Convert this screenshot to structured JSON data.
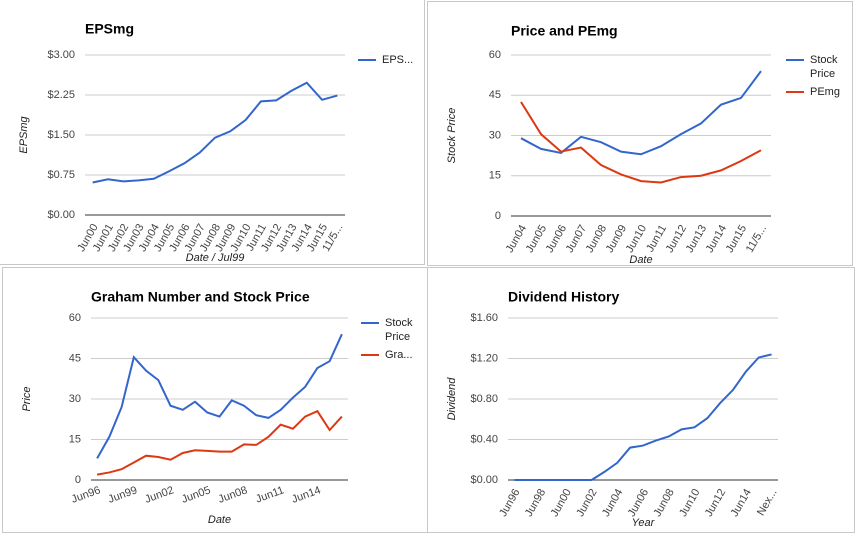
{
  "chart_data": [
    {
      "type": "line",
      "title": "EPSmg",
      "y_label": "EPSmg",
      "x_label": "Date / Jul99",
      "categories": [
        "Jun00",
        "Jun01",
        "Jun02",
        "Jun03",
        "Jun04",
        "Jun05",
        "Jun06",
        "Jun07",
        "Jun08",
        "Jun09",
        "Jun10",
        "Jun11",
        "Jun12",
        "Jun13",
        "Jun14",
        "Jun15",
        "11/5..."
      ],
      "series": [
        {
          "name": "EPS...",
          "color": "#3366cc",
          "values": [
            0.61,
            0.67,
            0.63,
            0.65,
            0.68,
            0.82,
            0.97,
            1.17,
            1.45,
            1.57,
            1.78,
            2.13,
            2.15,
            2.33,
            2.48,
            2.16,
            2.24
          ]
        }
      ],
      "ylim": [
        0,
        3
      ],
      "yticks": [
        {
          "value": 0,
          "label": "$0.00"
        },
        {
          "value": 0.75,
          "label": "$0.75"
        },
        {
          "value": 1.5,
          "label": "$1.50"
        },
        {
          "value": 2.25,
          "label": "$2.25"
        },
        {
          "value": 3,
          "label": "$3.00"
        }
      ],
      "grid": true,
      "legend": "right"
    },
    {
      "type": "line",
      "title": "Price and PEmg",
      "y_label": "Stock Price",
      "x_label": "Date",
      "categories": [
        "Jun04",
        "Jun05",
        "Jun06",
        "Jun07",
        "Jun08",
        "Jun09",
        "Jun10",
        "Jun11",
        "Jun12",
        "Jun13",
        "Jun14",
        "Jun15",
        "11/5..."
      ],
      "series": [
        {
          "name": "Stock Price",
          "color": "#3366cc",
          "values": [
            29,
            25,
            23.5,
            29.5,
            27.5,
            24,
            23,
            26,
            30.5,
            34.5,
            41.5,
            44,
            54
          ]
        },
        {
          "name": "PEmg",
          "color": "#dc3912",
          "values": [
            42.5,
            30.5,
            24,
            25.5,
            19,
            15.5,
            13,
            12.5,
            14.5,
            15,
            17,
            20.5,
            24.5
          ]
        }
      ],
      "ylim": [
        0,
        60
      ],
      "yticks": [
        0,
        15,
        30,
        45,
        60
      ],
      "grid": true,
      "legend": "right"
    },
    {
      "type": "line",
      "title": "Graham Number and Stock Price",
      "y_label": "Price",
      "x_label": "Date",
      "categories": [
        "Jun96",
        null,
        null,
        "Jun99",
        null,
        null,
        "Jun02",
        null,
        null,
        "Jun05",
        null,
        null,
        "Jun08",
        null,
        null,
        "Jun11",
        null,
        null,
        "Jun14",
        null,
        null
      ],
      "series": [
        {
          "name": "Stock Price",
          "color": "#3366cc",
          "values": [
            8,
            16,
            27,
            45.5,
            40.5,
            37,
            27.5,
            26,
            29,
            25,
            23.5,
            29.5,
            27.5,
            24,
            23,
            26,
            30.5,
            34.5,
            41.5,
            44,
            54
          ]
        },
        {
          "name": "Gra...",
          "color": "#dc3912",
          "values": [
            2,
            2.8,
            4,
            6.5,
            9,
            8.5,
            7.5,
            10,
            11,
            10.8,
            10.5,
            10.5,
            13.2,
            13,
            16,
            20.5,
            19,
            23.5,
            25.5,
            18.5,
            23.5
          ]
        }
      ],
      "ylim": [
        0,
        60
      ],
      "yticks": [
        0,
        15,
        30,
        45,
        60
      ],
      "grid": true,
      "legend": "right"
    },
    {
      "type": "line",
      "title": "Dividend History",
      "y_label": "Dividend",
      "x_label": "Year",
      "categories": [
        "Jun96",
        null,
        "Jun98",
        null,
        "Jun00",
        null,
        "Jun02",
        null,
        "Jun04",
        null,
        "Jun06",
        null,
        "Jun08",
        null,
        "Jun10",
        null,
        "Jun12",
        null,
        "Jun14",
        null,
        "Nex..."
      ],
      "values": [
        0,
        0,
        0,
        0,
        0,
        0,
        0,
        0.08,
        0.17,
        0.32,
        0.34,
        0.39,
        0.43,
        0.5,
        0.52,
        0.61,
        0.76,
        0.89,
        1.07,
        1.21,
        1.24
      ],
      "color": "#3366cc",
      "ylim": [
        0,
        1.6
      ],
      "yticks": [
        {
          "value": 0,
          "label": "$0.00"
        },
        {
          "value": 0.4,
          "label": "$0.40"
        },
        {
          "value": 0.8,
          "label": "$0.80"
        },
        {
          "value": 1.2,
          "label": "$1.20"
        },
        {
          "value": 1.6,
          "label": "$1.60"
        }
      ],
      "grid": true
    }
  ]
}
